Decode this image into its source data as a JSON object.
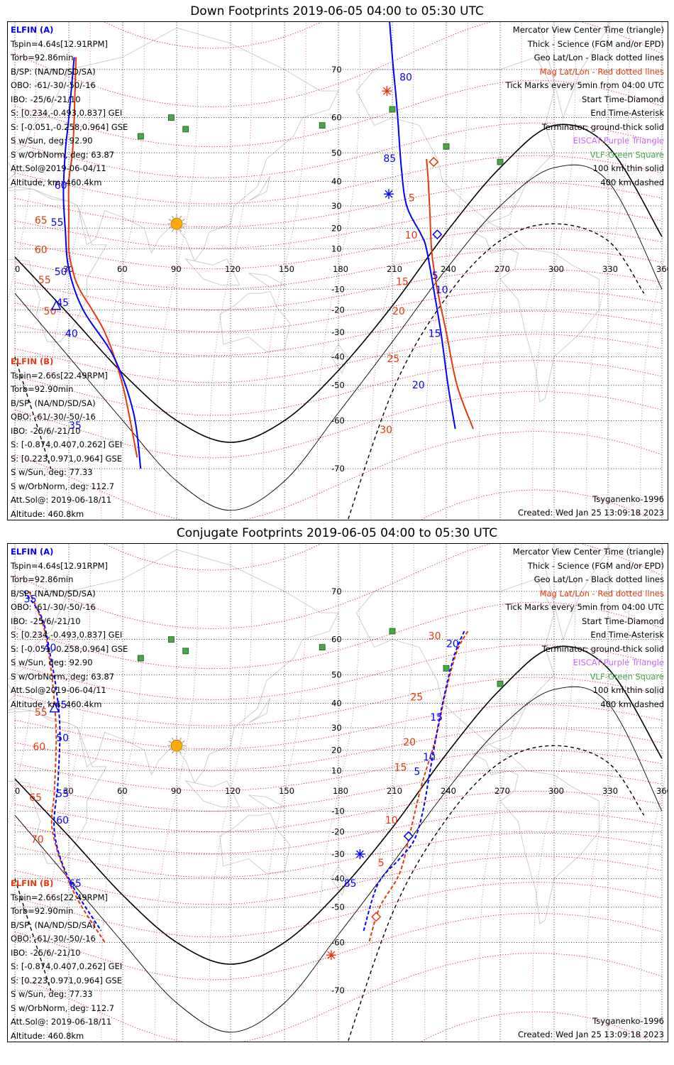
{
  "titles": {
    "down": "Down Footprints 2019-06-05 04:00 to 05:30 UTC",
    "conjugate": "Conjugate Footprints 2019-06-05 04:00 to 05:30 UTC"
  },
  "spacecraft_a": {
    "name": "ELFIN (A)",
    "lines": [
      "Tspin=4.64s[12.91RPM]",
      "Torb=92.86min",
      "B/SP: (NA/ND/SD/SA)",
      "OBO: -61/-30/-50/-16",
      "IBO: -25/6/-21/10",
      "S: [0.234,-0.493,0.837] GEI",
      "S: [-0.051,-0.258,0.964] GSE",
      "S w/Sun, deg: 92.90",
      "S w/OrbNorm, deg: 63.87",
      "Att.Sol@2019-06-04/11",
      "Altitude, km: 460.4km"
    ]
  },
  "spacecraft_b": {
    "name": "ELFIN (B)",
    "lines": [
      "Tspin=2.66s[22.49RPM]",
      "Torb=92.90min",
      "B/SP: (NA/ND/SD/SA)",
      "OBO: -61/-30/-50/-16",
      "IBO: -25/6/-21/10",
      "S: [-0.874,0.407,0.262] GEI",
      "S: [0.223,0.971,0.964] GSE",
      "S w/Sun, deg: 77.33",
      "S w/OrbNorm, deg: 112.7",
      "Att.Sol@: 2019-06-18/11",
      "Altitude: 460.8km"
    ]
  },
  "legend": {
    "view": "Mercator View Center Time (triangle)",
    "thick": "Thick - Science (FGM and/or EPD)",
    "geo": "Geo Lat/Lon - Black dotted lines",
    "mag": "Mag Lat/Lon - Red dotted lines",
    "ticks": "Tick Marks every 5min from 04:00 UTC",
    "start": "Start Time-Diamond",
    "end": "End Time-Asterisk",
    "terminator": "Terminator: ground-thick solid",
    "eiscat": "EISCAT-Purple Triangle",
    "vlf": "VLF-Green Square",
    "km100": "100 km-thin solid",
    "km400": "400 km-dashed"
  },
  "footer": {
    "model": "Tsyganenko-1996",
    "created": "Created: Wed Jan 25 13:09:18 2023"
  },
  "axes": {
    "lon_ticks": [
      "0",
      "30",
      "60",
      "90",
      "120",
      "150",
      "180",
      "210",
      "240",
      "270",
      "300",
      "330",
      "360"
    ],
    "lat_ticks": [
      "70",
      "60",
      "50",
      "40",
      "30",
      "20",
      "10",
      "-10",
      "-20",
      "-30",
      "-40",
      "-50",
      "-60",
      "-70"
    ]
  },
  "colors": {
    "a_track": "#0000ff",
    "b_track": "#e6370a",
    "mag_grid": "#dd0000",
    "terminator": "#000000",
    "vlf": "#44aa44",
    "sun": "#ffaa00"
  },
  "map_data": {
    "down": {
      "a_track": [
        [
          245,
          -62
        ],
        [
          241,
          -50
        ],
        [
          237,
          -30
        ],
        [
          233,
          -10
        ],
        [
          229,
          10
        ],
        [
          226,
          17
        ],
        [
          218,
          30
        ],
        [
          215,
          45
        ],
        [
          213,
          60
        ],
        [
          212,
          65
        ],
        [
          210,
          72
        ],
        [
          208,
          78
        ]
      ],
      "b_track": [
        [
          255,
          -62
        ],
        [
          246,
          -50
        ],
        [
          240,
          -30
        ],
        [
          235,
          -10
        ],
        [
          232,
          8
        ],
        [
          231,
          25
        ],
        [
          230,
          40
        ],
        [
          229,
          48
        ]
      ],
      "a_south_track": [
        [
          33,
          72
        ],
        [
          30,
          60
        ],
        [
          28,
          50
        ],
        [
          27,
          35
        ],
        [
          28,
          20
        ],
        [
          30,
          0
        ],
        [
          38,
          -20
        ],
        [
          55,
          -40
        ],
        [
          66,
          -58
        ],
        [
          70,
          -70
        ]
      ],
      "b_south_track": [
        [
          34,
          72
        ],
        [
          33,
          60
        ],
        [
          32,
          50
        ],
        [
          30,
          40
        ],
        [
          30,
          25
        ],
        [
          30,
          10
        ],
        [
          32,
          0
        ],
        [
          36,
          -10
        ],
        [
          50,
          -30
        ],
        [
          60,
          -50
        ],
        [
          68,
          -68
        ]
      ],
      "a_tick_labels": [
        {
          "t": "80",
          "lon": 214,
          "lat": 68
        },
        {
          "t": "85",
          "lon": 205,
          "lat": 47
        },
        {
          "t": "5",
          "lon": 232,
          "lat": -5
        },
        {
          "t": "10",
          "lon": 234,
          "lat": -12
        },
        {
          "t": "15",
          "lon": 230,
          "lat": -32
        },
        {
          "t": "20",
          "lon": 221,
          "lat": -51
        },
        {
          "t": "60",
          "lon": 22,
          "lat": 37
        },
        {
          "t": "55",
          "lon": 20,
          "lat": 21
        },
        {
          "t": "50",
          "lon": 22,
          "lat": -3
        },
        {
          "t": "45",
          "lon": 23,
          "lat": -18
        },
        {
          "t": "40",
          "lon": 28,
          "lat": -32
        },
        {
          "t": "35",
          "lon": 30,
          "lat": -62
        }
      ],
      "b_tick_labels": [
        {
          "t": "5",
          "lon": 219,
          "lat": 32
        },
        {
          "t": "10",
          "lon": 217,
          "lat": 15
        },
        {
          "t": "15",
          "lon": 212,
          "lat": -8
        },
        {
          "t": "20",
          "lon": 210,
          "lat": -22
        },
        {
          "t": "25",
          "lon": 207,
          "lat": -42
        },
        {
          "t": "30",
          "lon": 203,
          "lat": -63
        },
        {
          "t": "65",
          "lon": 11,
          "lat": 22
        },
        {
          "t": "60",
          "lon": 11,
          "lat": 8
        },
        {
          "t": "55",
          "lon": 13,
          "lat": -7
        },
        {
          "t": "50",
          "lon": 16,
          "lat": -22
        }
      ],
      "a_start": [
        235,
        17
      ],
      "a_end": [
        208,
        35
      ],
      "b_start": [
        233,
        47
      ],
      "b_end": [
        207,
        66
      ],
      "a_center": [
        23,
        -18
      ]
    },
    "conjugate": {
      "a_track": [
        [
          250,
          62
        ],
        [
          244,
          55
        ],
        [
          238,
          40
        ],
        [
          233,
          20
        ],
        [
          227,
          -10
        ],
        [
          222,
          -24
        ],
        [
          214,
          -32
        ],
        [
          202,
          -42
        ],
        [
          194,
          -57
        ]
      ],
      "b_track": [
        [
          252,
          62
        ],
        [
          246,
          57
        ],
        [
          240,
          45
        ],
        [
          234,
          25
        ],
        [
          226,
          2
        ],
        [
          220,
          -20
        ],
        [
          214,
          -38
        ],
        [
          203,
          -50
        ],
        [
          197,
          -60
        ]
      ],
      "a_south_track": [
        [
          5,
          70
        ],
        [
          15,
          65
        ],
        [
          20,
          55
        ],
        [
          23,
          45
        ],
        [
          25,
          30
        ],
        [
          24,
          5
        ],
        [
          22,
          -20
        ],
        [
          30,
          -40
        ],
        [
          48,
          -57
        ]
      ],
      "b_south_track": [
        [
          8,
          70
        ],
        [
          16,
          63
        ],
        [
          20,
          52
        ],
        [
          22,
          40
        ],
        [
          23,
          25
        ],
        [
          22,
          0
        ],
        [
          21,
          -20
        ],
        [
          32,
          -44
        ],
        [
          50,
          -60
        ]
      ],
      "a_tick_labels": [
        {
          "t": "20",
          "lon": 240,
          "lat": 58
        },
        {
          "t": "15",
          "lon": 231,
          "lat": 33
        },
        {
          "t": "10",
          "lon": 227,
          "lat": 15
        },
        {
          "t": "5",
          "lon": 222,
          "lat": 8
        },
        {
          "t": "85",
          "lon": 183,
          "lat": -43
        },
        {
          "t": "35",
          "lon": 5,
          "lat": 68
        },
        {
          "t": "40",
          "lon": 16,
          "lat": 57
        },
        {
          "t": "45",
          "lon": 22,
          "lat": 38
        },
        {
          "t": "50",
          "lon": 23,
          "lat": 24
        },
        {
          "t": "55",
          "lon": 23,
          "lat": -3
        },
        {
          "t": "60",
          "lon": 23,
          "lat": -16
        },
        {
          "t": "65",
          "lon": 30,
          "lat": -43
        }
      ],
      "b_tick_labels": [
        {
          "t": "30",
          "lon": 230,
          "lat": 60
        },
        {
          "t": "25",
          "lon": 220,
          "lat": 41
        },
        {
          "t": "20",
          "lon": 216,
          "lat": 22
        },
        {
          "t": "15",
          "lon": 211,
          "lat": 10
        },
        {
          "t": "10",
          "lon": 206,
          "lat": -16
        },
        {
          "t": "5",
          "lon": 202,
          "lat": -35
        },
        {
          "t": "65",
          "lon": 8,
          "lat": -5
        },
        {
          "t": "60",
          "lon": 10,
          "lat": 20
        },
        {
          "t": "55",
          "lon": 11,
          "lat": 35
        },
        {
          "t": "70",
          "lon": 9,
          "lat": -25
        }
      ],
      "a_start": [
        219,
        -22
      ],
      "a_end": [
        192,
        -30
      ],
      "b_start": [
        201,
        -53
      ],
      "b_end": [
        176,
        -63
      ],
      "a_center": [
        22,
        38
      ]
    },
    "terminator_ground": [
      [
        0,
        6
      ],
      [
        30,
        -22
      ],
      [
        60,
        -46
      ],
      [
        90,
        -60
      ],
      [
        120,
        -65
      ],
      [
        150,
        -60
      ],
      [
        180,
        -45
      ],
      [
        210,
        -18
      ],
      [
        240,
        18
      ],
      [
        270,
        45
      ],
      [
        300,
        58
      ],
      [
        330,
        52
      ],
      [
        360,
        16
      ]
    ],
    "terminator_100": [
      [
        0,
        -12
      ],
      [
        30,
        -40
      ],
      [
        60,
        -60
      ],
      [
        90,
        -72
      ],
      [
        120,
        -76
      ],
      [
        150,
        -72
      ],
      [
        180,
        -58
      ],
      [
        210,
        -34
      ],
      [
        240,
        0
      ],
      [
        270,
        30
      ],
      [
        300,
        45
      ],
      [
        330,
        40
      ],
      [
        360,
        -10
      ]
    ],
    "terminator_400": [
      [
        0,
        -40
      ],
      [
        20,
        -70
      ]
    ],
    "terminator_400_b": [
      [
        180,
        -80
      ],
      [
        210,
        -52
      ],
      [
        240,
        -14
      ],
      [
        270,
        14
      ],
      [
        300,
        22
      ],
      [
        330,
        14
      ],
      [
        350,
        -12
      ]
    ],
    "vlf_sites": [
      [
        70,
        55
      ],
      [
        87,
        60
      ],
      [
        95,
        57
      ],
      [
        171,
        58
      ],
      [
        210,
        62
      ],
      [
        240,
        52
      ],
      [
        270,
        47
      ]
    ],
    "sun": [
      90,
      22
    ]
  }
}
